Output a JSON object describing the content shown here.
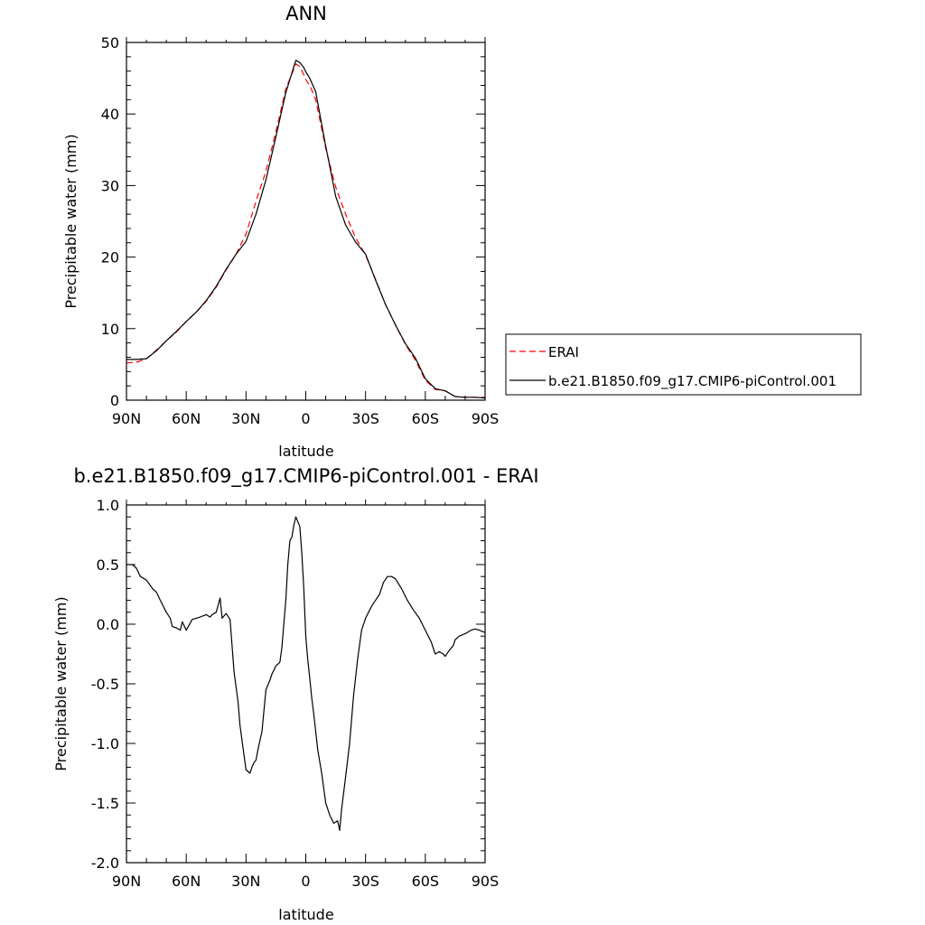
{
  "chart_data": [
    {
      "type": "line",
      "title": "ANN",
      "xlabel": "latitude",
      "ylabel": "Precipitable water (mm)",
      "xlim": [
        90,
        -90
      ],
      "ylim": [
        0,
        50
      ],
      "x_tick_values": [
        90,
        60,
        30,
        0,
        -30,
        -60,
        -90
      ],
      "x_ticks": [
        "90N",
        "60N",
        "30N",
        "0",
        "30S",
        "60S",
        "90S"
      ],
      "y_tick_values": [
        0,
        10,
        20,
        30,
        40,
        50
      ],
      "y_ticks": [
        "0",
        "10",
        "20",
        "30",
        "40",
        "50"
      ],
      "legend_position": "right",
      "series": [
        {
          "name": "ERAI",
          "color": "#ff0000",
          "dash": "dashed",
          "x": [
            90,
            85,
            80,
            75,
            70,
            65,
            60,
            55,
            50,
            45,
            40,
            35,
            30,
            25,
            20,
            15,
            10,
            5,
            3,
            1,
            0,
            -2,
            -5,
            -10,
            -15,
            -20,
            -25,
            -30,
            -35,
            -40,
            -45,
            -50,
            -55,
            -60,
            -65,
            -70,
            -75,
            -80,
            -85,
            -90
          ],
          "y": [
            5.2,
            5.3,
            5.8,
            7.0,
            8.3,
            9.5,
            11.0,
            12.3,
            13.8,
            15.8,
            18.2,
            20.4,
            23.2,
            27.8,
            32.0,
            37.5,
            43.5,
            47.0,
            46.6,
            45.5,
            44.8,
            44.0,
            42.0,
            35.2,
            29.8,
            26.0,
            22.7,
            20.3,
            16.9,
            13.4,
            10.5,
            7.8,
            5.6,
            2.8,
            1.5,
            1.3,
            0.5,
            0.4,
            0.4,
            0.4
          ]
        },
        {
          "name": "b.e21.B1850.f09_g17.CMIP6-piControl.001",
          "color": "#000000",
          "dash": "solid",
          "x": [
            90,
            85,
            80,
            75,
            70,
            65,
            60,
            55,
            50,
            45,
            40,
            35,
            30,
            25,
            20,
            15,
            10,
            5,
            3,
            1,
            0,
            -2,
            -5,
            -10,
            -15,
            -20,
            -25,
            -30,
            -35,
            -40,
            -45,
            -50,
            -55,
            -60,
            -65,
            -70,
            -75,
            -80,
            -85,
            -90
          ],
          "y": [
            5.7,
            5.7,
            5.8,
            6.9,
            8.3,
            9.6,
            11.0,
            12.3,
            13.9,
            15.9,
            18.3,
            20.4,
            22.2,
            26.0,
            30.8,
            36.8,
            43.0,
            47.5,
            47.2,
            46.5,
            45.9,
            45.0,
            43.1,
            35.5,
            28.5,
            24.5,
            22.1,
            20.4,
            16.8,
            13.4,
            10.5,
            7.9,
            5.9,
            3.0,
            1.6,
            1.3,
            0.5,
            0.4,
            0.4,
            0.3
          ]
        }
      ]
    },
    {
      "type": "line",
      "title": "b.e21.B1850.f09_g17.CMIP6-piControl.001 - ERAI",
      "xlabel": "latitude",
      "ylabel": "Precipitable water (mm)",
      "xlim": [
        90,
        -90
      ],
      "ylim": [
        -2.0,
        1.0
      ],
      "x_tick_values": [
        90,
        60,
        30,
        0,
        -30,
        -60,
        -90
      ],
      "x_ticks": [
        "90N",
        "60N",
        "30N",
        "0",
        "30S",
        "60S",
        "90S"
      ],
      "y_tick_values": [
        1.0,
        0.5,
        0.0,
        -0.5,
        -1.0,
        -1.5,
        -2.0
      ],
      "y_ticks": [
        "1.0",
        "0.5",
        "0.0",
        "-0.5",
        "-1.0",
        "-1.5",
        "-2.0"
      ],
      "series": [
        {
          "color": "#000000",
          "dash": "solid",
          "x": [
            90,
            87,
            85,
            83,
            80,
            77,
            75,
            73,
            70,
            68,
            67,
            65,
            63,
            62,
            60,
            58,
            57,
            55,
            53,
            50,
            48,
            47,
            45,
            43,
            42,
            40,
            38,
            36,
            34,
            33,
            30,
            28,
            27,
            26,
            25,
            24,
            22,
            20,
            18,
            17,
            15,
            13,
            12,
            10,
            9,
            8,
            7,
            6,
            5,
            3,
            2,
            1,
            0,
            -1,
            -2,
            -3,
            -4,
            -5,
            -6,
            -8,
            -10,
            -12,
            -14,
            -16,
            -17,
            -18,
            -20,
            -22,
            -24,
            -26,
            -28,
            -30,
            -33,
            -35,
            -37,
            -39,
            -41,
            -43,
            -45,
            -48,
            -51,
            -54,
            -57,
            -60,
            -63,
            -65,
            -67,
            -69,
            -70,
            -72,
            -74,
            -75,
            -77,
            -80,
            -83,
            -85,
            -87,
            -90
          ],
          "y": [
            0.5,
            0.5,
            0.47,
            0.4,
            0.37,
            0.3,
            0.27,
            0.2,
            0.1,
            0.05,
            -0.02,
            -0.03,
            -0.05,
            0.02,
            -0.05,
            0.01,
            0.04,
            0.05,
            0.06,
            0.08,
            0.06,
            0.08,
            0.1,
            0.22,
            0.05,
            0.09,
            0.04,
            -0.4,
            -0.65,
            -0.85,
            -1.22,
            -1.25,
            -1.2,
            -1.16,
            -1.14,
            -1.05,
            -0.9,
            -0.55,
            -0.47,
            -0.42,
            -0.35,
            -0.32,
            -0.2,
            0.2,
            0.5,
            0.7,
            0.73,
            0.83,
            0.9,
            0.82,
            0.6,
            0.3,
            -0.1,
            -0.3,
            -0.45,
            -0.62,
            -0.75,
            -0.9,
            -1.05,
            -1.25,
            -1.5,
            -1.6,
            -1.67,
            -1.65,
            -1.73,
            -1.55,
            -1.28,
            -1.0,
            -0.6,
            -0.3,
            -0.05,
            0.05,
            0.15,
            0.2,
            0.25,
            0.35,
            0.4,
            0.4,
            0.38,
            0.3,
            0.2,
            0.12,
            0.05,
            -0.05,
            -0.15,
            -0.25,
            -0.23,
            -0.25,
            -0.27,
            -0.22,
            -0.18,
            -0.13,
            -0.1,
            -0.08,
            -0.05,
            -0.04,
            -0.05,
            -0.07
          ]
        }
      ]
    }
  ]
}
